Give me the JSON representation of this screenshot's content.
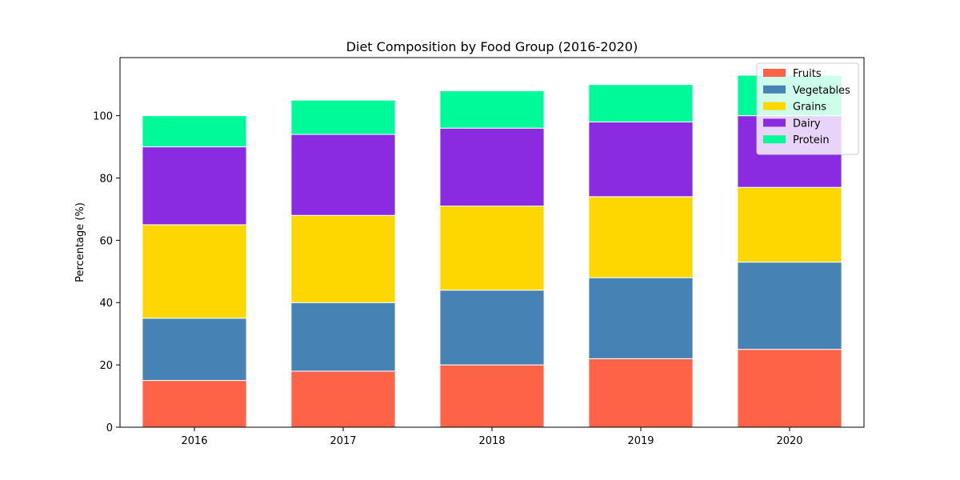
{
  "chart_data": {
    "type": "bar",
    "stacked": true,
    "title": "Diet Composition by Food Group (2016-2020)",
    "xlabel": "",
    "ylabel": "Percentage (%)",
    "categories": [
      "2016",
      "2017",
      "2018",
      "2019",
      "2020"
    ],
    "series": [
      {
        "name": "Fruits",
        "color": "#ff6347",
        "values": [
          15,
          18,
          20,
          22,
          25
        ]
      },
      {
        "name": "Vegetables",
        "color": "#4682b4",
        "values": [
          20,
          22,
          24,
          26,
          28
        ]
      },
      {
        "name": "Grains",
        "color": "#ffd700",
        "values": [
          30,
          28,
          27,
          26,
          24
        ]
      },
      {
        "name": "Dairy",
        "color": "#8a2be2",
        "values": [
          25,
          26,
          25,
          24,
          23
        ]
      },
      {
        "name": "Protein",
        "color": "#00fa9a",
        "values": [
          10,
          11,
          12,
          12,
          13
        ]
      }
    ],
    "ylim": [
      0,
      118.65
    ],
    "yticks": [
      0,
      20,
      40,
      60,
      80,
      100
    ],
    "grid": false,
    "legend": {
      "placement": "top-right"
    }
  }
}
